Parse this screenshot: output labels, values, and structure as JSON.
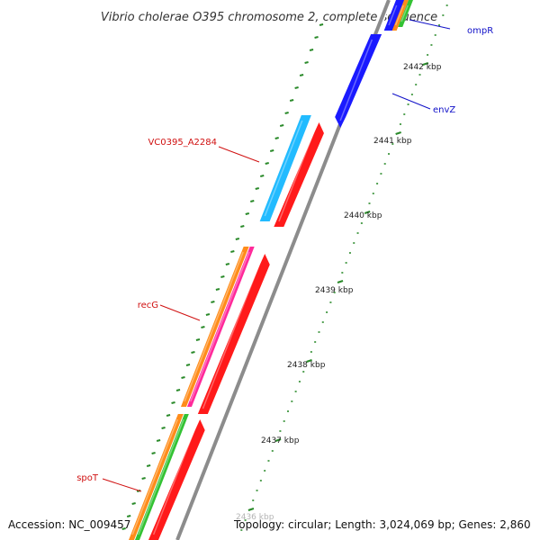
{
  "title": "Vibrio cholerae O395 chromosome 2, complete sequence",
  "footer": {
    "accession": "Accession: NC_009457",
    "topology": "Topology: circular; Length: 3,024,069 bp; Genes: 2,860"
  },
  "scale_labels": [
    "2442 kbp",
    "2441 kbp",
    "2440 kbp",
    "2439 kbp",
    "2438 kbp",
    "2437 kbp",
    "2436 kbp"
  ],
  "gene_labels": [
    {
      "text": "ompR",
      "strand": "forward"
    },
    {
      "text": "envZ",
      "strand": "forward"
    },
    {
      "text": "VC0395_A2284",
      "strand": "reverse"
    },
    {
      "text": "recG",
      "strand": "reverse"
    },
    {
      "text": "spoT",
      "strand": "reverse"
    }
  ],
  "colors": {
    "forward_gene": "#1a1aff",
    "reverse_gene": "#ff1a1a",
    "cds_blue": "#22bbff",
    "cds_orange": "#ff8c1a",
    "cds_pink": "#ff2a9a",
    "cds_green": "#33c233",
    "backbone": "#999999",
    "tick": "#2a8a2a"
  }
}
